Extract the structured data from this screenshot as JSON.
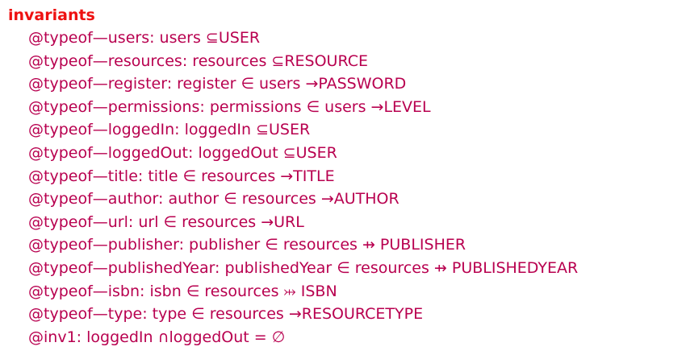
{
  "heading": "invariants",
  "lines": [
    {
      "label": "@typeof—users:",
      "body": "users ⊆USER"
    },
    {
      "label": "@typeof—resources:",
      "body": "resources ⊆RESOURCE"
    },
    {
      "label": "@typeof—register:",
      "body": "register ∈ users →PASSWORD"
    },
    {
      "label": "@typeof—permissions:",
      "body": "permissions ∈ users →LEVEL"
    },
    {
      "label": "@typeof—loggedIn:",
      "body": "loggedIn ⊆USER"
    },
    {
      "label": "@typeof—loggedOut:",
      "body": "loggedOut ⊆USER"
    },
    {
      "label": "@typeof—title:",
      "body": "title ∈ resources →TITLE"
    },
    {
      "label": "@typeof—author:",
      "body": "author ∈ resources →AUTHOR"
    },
    {
      "label": "@typeof—url:",
      "body": "url ∈ resources →URL"
    },
    {
      "label": "@typeof—publisher:",
      "body": "publisher ∈ resources ⇸ PUBLISHER"
    },
    {
      "label": "@typeof—publishedYear:",
      "body": "publishedYear ∈ resources ⇸ PUBLISHEDYEAR"
    },
    {
      "label": "@typeof—isbn:",
      "body": "isbn ∈ resources ⤔ ISBN"
    },
    {
      "label": "@typeof—type:",
      "body": "type ∈ resources →RESOURCETYPE"
    },
    {
      "label": "@inv1:",
      "body": "loggedIn ∩loggedOut = ∅"
    }
  ]
}
